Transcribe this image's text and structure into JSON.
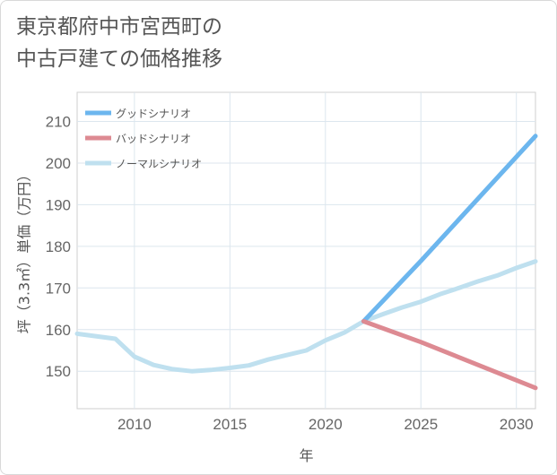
{
  "title_line1": "東京都府中市宮西町の",
  "title_line2": "中古戸建ての価格推移",
  "chart_data": {
    "type": "line",
    "title": "東京都府中市宮西町の中古戸建ての価格推移",
    "xlabel": "年",
    "ylabel": "坪（3.3㎡）単価（万円）",
    "xlim": [
      2007,
      2031
    ],
    "ylim": [
      141,
      217
    ],
    "xticks": [
      2010,
      2015,
      2020,
      2025,
      2030
    ],
    "yticks": [
      150,
      160,
      170,
      180,
      190,
      200,
      210
    ],
    "grid": true,
    "legend_position": "top-left",
    "series": [
      {
        "name": "グッドシナリオ",
        "color": "#6cb6ee",
        "x": [
          2022,
          2025,
          2031
        ],
        "y": [
          162,
          176.5,
          206.5
        ]
      },
      {
        "name": "バッドシナリオ",
        "color": "#dd8a92",
        "x": [
          2022,
          2025,
          2031
        ],
        "y": [
          162,
          157,
          146
        ]
      },
      {
        "name": "ノーマルシナリオ",
        "color": "#bfe0ef",
        "x": [
          2007,
          2009,
          2010,
          2011,
          2012,
          2013,
          2014,
          2015,
          2016,
          2017,
          2018,
          2019,
          2020,
          2021,
          2022,
          2023,
          2024,
          2025,
          2026,
          2027,
          2028,
          2029,
          2030,
          2031
        ],
        "y": [
          159,
          157.8,
          153.5,
          151.5,
          150.5,
          150,
          150.3,
          150.8,
          151.4,
          152.8,
          153.9,
          155,
          157.4,
          159.3,
          162,
          163.7,
          165.3,
          166.7,
          168.5,
          170,
          171.6,
          173,
          174.8,
          176.4
        ]
      }
    ]
  }
}
